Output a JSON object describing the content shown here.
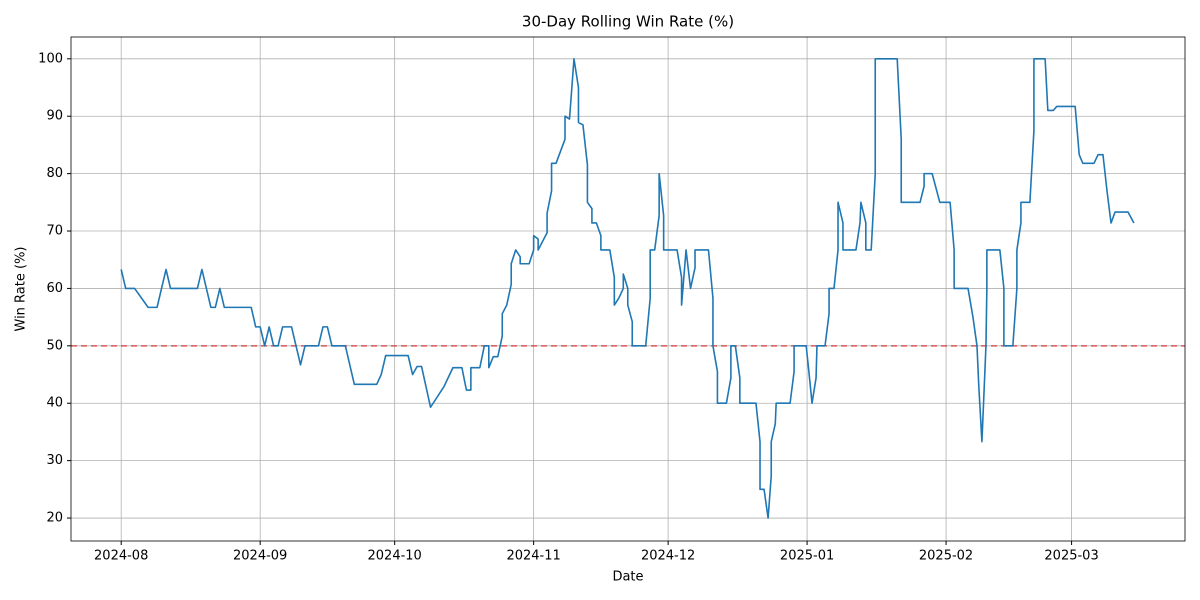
{
  "chart_data": {
    "type": "line",
    "title": "30-Day Rolling Win Rate (%)",
    "xlabel": "Date",
    "ylabel": "Win Rate (%)",
    "color": "#1f77b4",
    "grid": true,
    "reference_line": {
      "value": 50,
      "color": "#d62728"
    },
    "xlim": [
      -11.2,
      237.3
    ],
    "xticks": [
      {
        "value": 0,
        "label": "2024-08"
      },
      {
        "value": 31,
        "label": "2024-09"
      },
      {
        "value": 61,
        "label": "2024-10"
      },
      {
        "value": 92,
        "label": "2024-11"
      },
      {
        "value": 122,
        "label": "2024-12"
      },
      {
        "value": 153,
        "label": "2025-01"
      },
      {
        "value": 184,
        "label": "2025-02"
      },
      {
        "value": 212,
        "label": "2025-03"
      }
    ],
    "ylim": [
      16,
      103.8
    ],
    "yticks": [
      20,
      30,
      40,
      50,
      60,
      70,
      80,
      90,
      100
    ],
    "x": [
      0,
      1,
      3,
      6,
      8,
      10,
      11,
      17,
      18,
      20,
      21,
      22,
      23,
      29,
      30,
      31,
      32,
      33,
      34,
      35,
      36,
      38,
      40,
      41,
      44,
      45,
      46,
      47,
      50,
      52,
      57,
      58,
      59,
      64,
      65,
      66,
      67,
      69,
      72,
      74,
      76,
      77,
      78,
      78,
      80,
      81,
      82,
      82,
      83,
      84,
      85,
      85,
      86,
      87,
      87,
      88,
      89,
      89,
      91,
      92,
      92,
      93,
      93,
      95,
      95,
      96,
      96,
      97,
      99,
      99,
      100,
      101,
      102,
      102,
      103,
      104,
      104,
      105,
      105,
      106,
      107,
      107,
      109,
      110,
      110,
      111,
      112,
      112,
      113,
      113,
      114,
      114,
      116,
      117,
      118,
      118,
      119,
      120,
      120,
      121,
      121,
      124,
      125,
      125,
      126,
      127,
      128,
      128,
      131,
      132,
      132,
      133,
      133,
      135,
      136,
      136,
      137,
      138,
      138,
      141.6,
      142.5,
      142.5,
      143.4,
      144.3,
      145.0,
      145.0,
      145.9,
      146.1,
      149.2,
      150.1,
      150.1,
      152.8,
      153.4,
      154.1,
      155.0,
      155.2,
      157.0,
      157.9,
      157.9,
      159.0,
      159.9,
      159.9,
      161.0,
      161.0,
      163.9,
      164.8,
      165.0,
      166.1,
      166.1,
      167.3,
      168.2,
      168.2,
      173.1,
      174.0,
      174.0,
      178.2,
      179.1,
      179.1,
      180.9,
      182.6,
      184.9,
      185.8,
      185.8,
      188.9,
      190.0,
      190.9,
      191.3,
      192.0,
      192.9,
      193.1,
      193.1,
      196.0,
      196.9,
      196.9,
      198.9,
      199.8,
      199.8,
      200.7,
      200.7,
      202.7,
      203.6,
      203.6,
      206.1,
      206.7,
      207.9,
      208.7,
      212.8,
      213.7,
      214.5,
      217.0,
      217.9,
      219.0,
      219.9,
      220.8,
      221.7,
      224.6,
      225.9
    ],
    "values": [
      63.3,
      60,
      60,
      56.7,
      56.7,
      63.3,
      60,
      60,
      63.3,
      56.7,
      56.7,
      60,
      56.7,
      56.7,
      53.3,
      53.3,
      50,
      53.3,
      50,
      50,
      53.3,
      53.3,
      46.7,
      50,
      50,
      53.3,
      53.3,
      50,
      50,
      43.3,
      43.3,
      45,
      48.3,
      48.3,
      45,
      46.4,
      46.4,
      39.3,
      42.9,
      46.2,
      46.2,
      42.3,
      42.3,
      46.2,
      46.2,
      50,
      50,
      46.2,
      48.1,
      48.1,
      51.7,
      55.6,
      57.1,
      60.7,
      64.3,
      66.7,
      65.5,
      64.3,
      64.3,
      66.7,
      69.2,
      68.6,
      66.7,
      69.7,
      73.1,
      77,
      81.8,
      81.8,
      86,
      90,
      89.5,
      100,
      95,
      88.9,
      88.5,
      81.5,
      75,
      73.9,
      71.4,
      71.4,
      69.2,
      66.7,
      66.7,
      61.9,
      57.1,
      58.3,
      60,
      62.5,
      60,
      57.1,
      54.2,
      50,
      50,
      50,
      58.3,
      66.7,
      66.7,
      72.7,
      80,
      72.7,
      66.7,
      66.7,
      61.9,
      57.1,
      66.7,
      60,
      63.6,
      66.7,
      66.7,
      58.3,
      50,
      45.5,
      40,
      40,
      44.4,
      50,
      50,
      44.4,
      40,
      40,
      33.3,
      25,
      25,
      20,
      27.3,
      33.3,
      36.4,
      40,
      40,
      45.5,
      50,
      50,
      45.5,
      40,
      44.4,
      50,
      50,
      55.6,
      60,
      60,
      66.7,
      75,
      71.4,
      66.7,
      66.7,
      71.4,
      75,
      71.4,
      66.7,
      66.7,
      80,
      100,
      100,
      86,
      75,
      75,
      77.8,
      80,
      80,
      75,
      75,
      66.7,
      60,
      60,
      55,
      50,
      43,
      33.3,
      50,
      60,
      66.7,
      66.7,
      60,
      50,
      50,
      60,
      66.7,
      71.4,
      75,
      75,
      87.5,
      100,
      100,
      91,
      91,
      91.7,
      91.7,
      83.3,
      81.8,
      81.8,
      83.3,
      83.3,
      77,
      71.4,
      73.3,
      73.3,
      71.4
    ]
  }
}
